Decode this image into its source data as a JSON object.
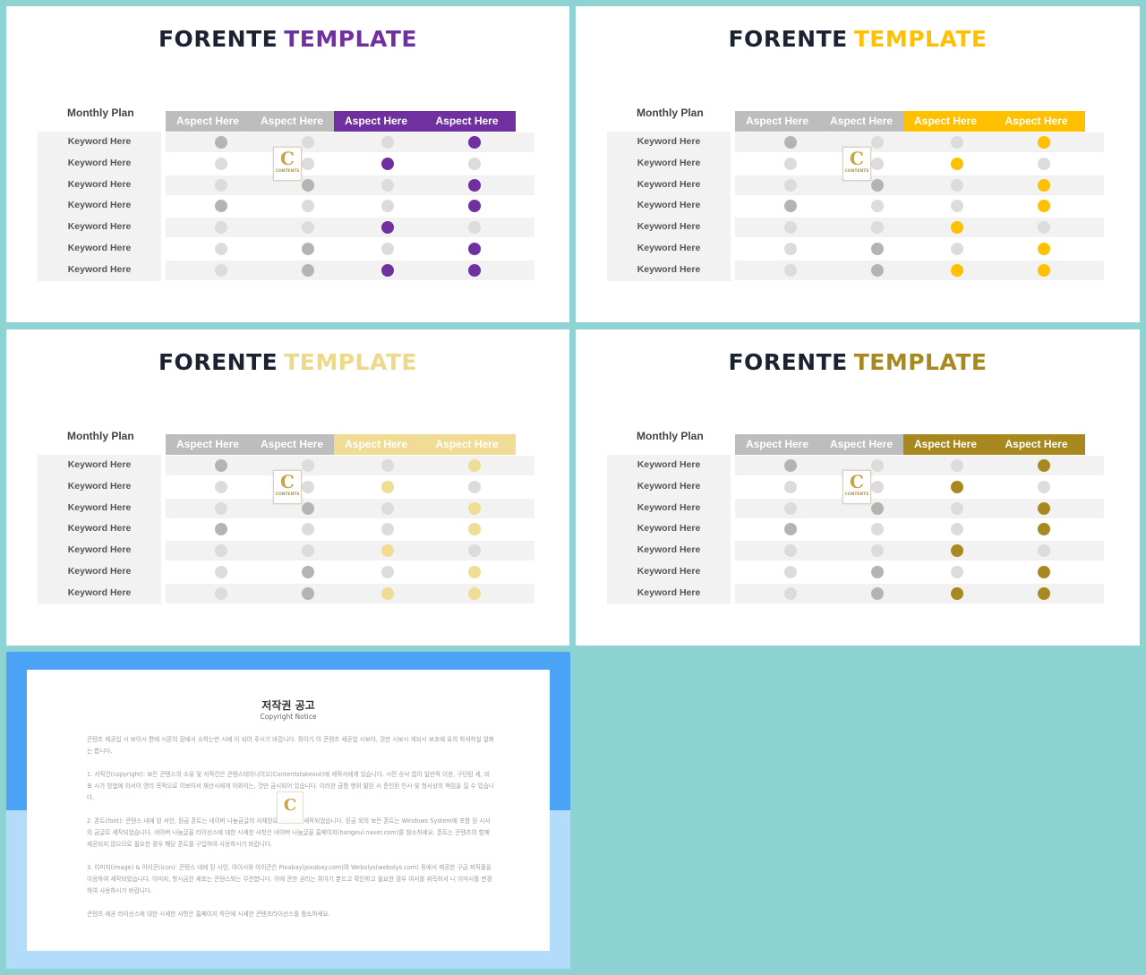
{
  "slides": [
    {
      "title_main": "FORENTE",
      "title_accent": "TEMPLATE",
      "accent_color": "#7030a0",
      "title_accent_color": "#7030a0",
      "plan_label": "Monthly Plan",
      "headers": [
        "Aspect Here",
        "Aspect Here",
        "Aspect Here",
        "Aspect Here"
      ],
      "keywords": [
        "Keyword Here",
        "Keyword Here",
        "Keyword Here",
        "Keyword Here",
        "Keyword Here",
        "Keyword Here",
        "Keyword Here"
      ]
    },
    {
      "title_main": "FORENTE",
      "title_accent": "TEMPLATE",
      "accent_color": "#ffc000",
      "title_accent_color": "#ffc000",
      "plan_label": "Monthly Plan",
      "headers": [
        "Aspect Here",
        "Aspect Here",
        "Aspect Here",
        "Aspect Here"
      ],
      "keywords": [
        "Keyword Here",
        "Keyword Here",
        "Keyword Here",
        "Keyword Here",
        "Keyword Here",
        "Keyword Here",
        "Keyword Here"
      ]
    },
    {
      "title_main": "FORENTE",
      "title_accent": "TEMPLATE",
      "accent_color": "#f0dc94",
      "title_accent_color": "#eed98a",
      "plan_label": "Monthly Plan",
      "headers": [
        "Aspect Here",
        "Aspect Here",
        "Aspect Here",
        "Aspect Here"
      ],
      "keywords": [
        "Keyword Here",
        "Keyword Here",
        "Keyword Here",
        "Keyword Here",
        "Keyword Here",
        "Keyword Here",
        "Keyword Here"
      ]
    },
    {
      "title_main": "FORENTE",
      "title_accent": "TEMPLATE",
      "accent_color": "#a8891f",
      "title_accent_color": "#a8891f",
      "plan_label": "Monthly Plan",
      "headers": [
        "Aspect Here",
        "Aspect Here",
        "Aspect Here",
        "Aspect Here"
      ],
      "keywords": [
        "Keyword Here",
        "Keyword Here",
        "Keyword Here",
        "Keyword Here",
        "Keyword Here",
        "Keyword Here",
        "Keyword Here"
      ]
    }
  ],
  "dot_matrix": [
    [
      "mid",
      "light",
      "light",
      "accent"
    ],
    [
      "light",
      "light",
      "accent",
      "light"
    ],
    [
      "light",
      "mid",
      "light",
      "accent"
    ],
    [
      "mid",
      "light",
      "light",
      "accent"
    ],
    [
      "light",
      "light",
      "accent",
      "light"
    ],
    [
      "light",
      "mid",
      "light",
      "accent"
    ],
    [
      "light",
      "mid",
      "accent",
      "accent"
    ]
  ],
  "logo": {
    "letter": "C",
    "text": "CONTENTS"
  },
  "copyright": {
    "title": "저작권 공고",
    "subtitle": "Copyright Notice",
    "paragraphs": [
      "콘텐츠 제공업 시 보이시 편에 시몬의 환에서 소하는번 시에 이 되어 주시기 바랍니다. 쥐아기 이 콘텐츠 세공업 시보아, 것만 시보시 게되시 보조에 유의 하셔하실 앞펴는 합니다.",
      "1. 서작건(copyright): 보든 콘텐스의 소유 및 서작건은 콘텐스테이니이오(Contentstakeout)에 세작사에게 있습니다. 시전 승낙 없이 일반적 이용, 구단된 세, 비표 시가 방법에 와서이 영리 목적으로 이보아서 재산시에게 이와이는, 것만 금시되어 있습니다. 이러한 금함 행위 발된 시 준인된 민시 및 형사상의 책임을 질 수 있습니다.",
      "2. 폰트(font): 콘텐스 내에 된 서인, 된금 폰트는 네이버 나눔금글의 서체된로 제작하여 세작되었습니다. 된금 외의 보든 폰트는 Windows System에 포함 된 시사의 금글로 세작되었습니다. 네이버 나눔글꼴 라이선스에 대한 시세한 사항은 네이버 나눔글꼴 홈페이지(hangeul.naver.com)를 참소하세요. 폰트는 콘텐츠의 함께 세공되지 않으므로 필요한 경우 해당 폰트를 구입하여 사용하시기 바랍니다.",
      "3. 이미지(image) & 아이콘(icon): 콘텐스 내에 된 사인, 아이시와 아이콘은 Pixabay(pixabay.com)와 Webolys(webolys.com) 등에서 제공한 구금 저작물을 이용하여 세작되었습니다. 이미지, 항시금한 세포는 콘텐스와는 무관합니다. 이에 관한 권리는 쥐아기 뿐드고 확인하고 필요한 경우 여서를 취득하셔 니 이미시를 변경하여 사용하시기 바랍니다.",
      "콘텐츠 세공 라이선스에 대한 시세한 사항은 홈페이지 하단에 시세한 콘텐츠라이선스를 참소하세요."
    ]
  }
}
